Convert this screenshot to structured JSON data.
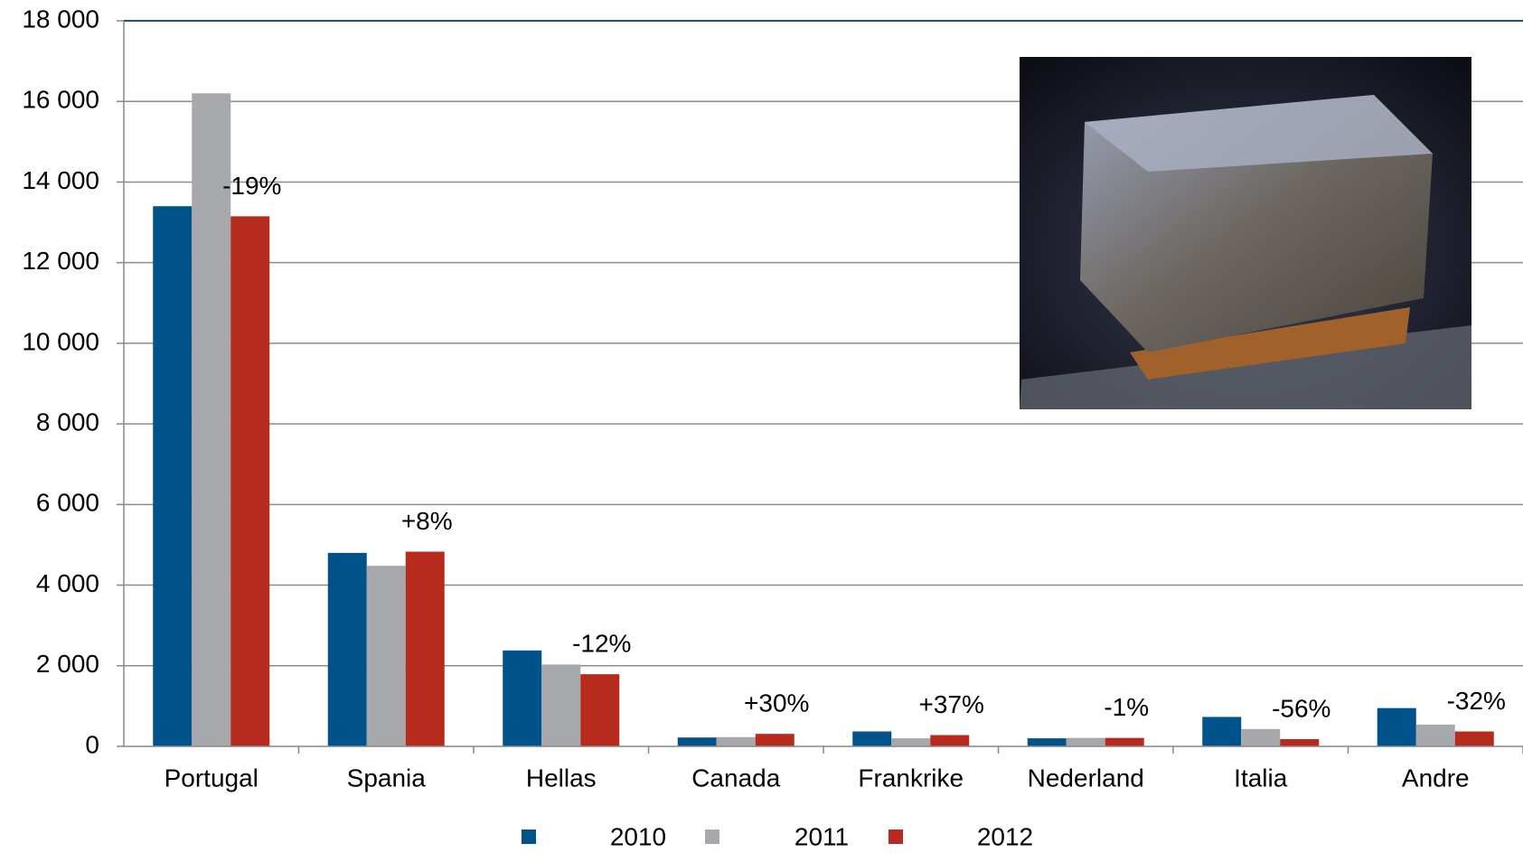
{
  "chart_data": {
    "type": "bar",
    "categories": [
      "Portugal",
      "Spania",
      "Hellas",
      "Canada",
      "Frankrike",
      "Nederland",
      "Italia",
      "Andre"
    ],
    "series": [
      {
        "name": "2010",
        "color": "#00538a",
        "values": [
          13400,
          4800,
          2380,
          220,
          370,
          200,
          730,
          950
        ]
      },
      {
        "name": "2011",
        "color": "#a6a8ab",
        "values": [
          16200,
          4480,
          2030,
          230,
          200,
          210,
          430,
          540
        ]
      },
      {
        "name": "2012",
        "color": "#b72b1f",
        "values": [
          13150,
          4830,
          1790,
          310,
          280,
          210,
          180,
          370
        ]
      }
    ],
    "annotations": [
      "-19%",
      "+8%",
      "-12%",
      "+30%",
      "+37%",
      "-1%",
      "-56%",
      "-32%"
    ],
    "ylim": [
      0,
      18000
    ],
    "yticks": [
      0,
      {
        "value": 2000,
        "label": "2 000"
      },
      {
        "value": 4000,
        "label": "4 000"
      },
      {
        "value": 6000,
        "label": "6 000"
      },
      {
        "value": 8000,
        "label": "8 000"
      },
      {
        "value": 10000,
        "label": "10 000"
      },
      {
        "value": 12000,
        "label": "12 000"
      },
      {
        "value": 14000,
        "label": "14 000"
      },
      {
        "value": 16000,
        "label": "16 000"
      },
      {
        "value": 18000,
        "label": "18 000"
      }
    ],
    "grid": true
  }
}
